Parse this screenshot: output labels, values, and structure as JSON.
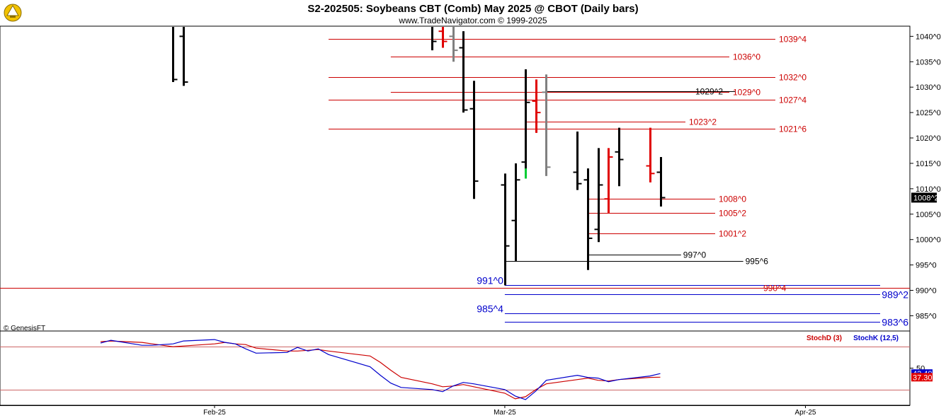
{
  "header": {
    "title": "S2-202505:  Soybeans CBT (Comb) May 2025 @ CBOT  (Daily bars)",
    "subtitle": "www.TradeNavigator.com © 1999-2025",
    "logo_icon": "trade-navigator-logo-icon"
  },
  "watermark": "© GenesisFT",
  "colors": {
    "up": "#000000",
    "down_red": "#e00000",
    "gray": "#808080",
    "green": "#00cc33",
    "level_red": "#cc0000",
    "level_blue": "#0000cc",
    "level_black": "#000000",
    "stoch_d": "#cc0000",
    "stoch_k": "#0000cc"
  },
  "chart_data": [
    {
      "type": "bar",
      "subtype": "ohlc",
      "title": "S2-202505:  Soybeans CBT (Comb) May 2025 @ CBOT  (Daily bars)",
      "ylim": [
        982,
        1042
      ],
      "y_ticks": [
        {
          "value": 1040,
          "label": "1040^0"
        },
        {
          "value": 1035,
          "label": "1035^0"
        },
        {
          "value": 1030,
          "label": "1030^0"
        },
        {
          "value": 1025,
          "label": "1025^0"
        },
        {
          "value": 1020,
          "label": "1020^0"
        },
        {
          "value": 1015,
          "label": "1015^0"
        },
        {
          "value": 1010,
          "label": "1010^0"
        },
        {
          "value": 1005,
          "label": "1005^0"
        },
        {
          "value": 1000,
          "label": "1000^0"
        },
        {
          "value": 995,
          "label": "995^0"
        },
        {
          "value": 990,
          "label": "990^0"
        },
        {
          "value": 985,
          "label": "985^0"
        }
      ],
      "x_labels": [
        {
          "date": "2025-02-03",
          "label": "Feb-25"
        },
        {
          "date": "2025-03-03",
          "label": "Mar-25"
        },
        {
          "date": "2025-04-01",
          "label": "Apr-25"
        }
      ],
      "last_price": {
        "value": 1008.25,
        "label": "1008^2"
      },
      "bars": [
        {
          "date": "2025-01-30",
          "open": 1052.0,
          "high": 1062.0,
          "low": 1031.0,
          "close": 1031.5,
          "color": "up"
        },
        {
          "date": "2025-01-31",
          "open": 1040.0,
          "high": 1058.0,
          "low": 1030.25,
          "close": 1031.0,
          "color": "up"
        },
        {
          "date": "2025-02-24",
          "open": 1044.0,
          "high": 1046.0,
          "low": 1037.25,
          "close": 1039.0,
          "color": "up"
        },
        {
          "date": "2025-02-25",
          "open": 1041.0,
          "high": 1045.0,
          "low": 1037.75,
          "close": 1039.0,
          "color": "down_red"
        },
        {
          "date": "2025-02-26",
          "open": 1040.0,
          "high": 1043.0,
          "low": 1035.0,
          "close": 1037.25,
          "color": "gray"
        },
        {
          "date": "2025-02-27",
          "open": 1037.75,
          "high": 1041.0,
          "low": 1025.0,
          "close": 1025.5,
          "color": "up"
        },
        {
          "date": "2025-02-28",
          "open": 1025.75,
          "high": 1031.25,
          "low": 1008.0,
          "close": 1011.5,
          "color": "up"
        },
        {
          "date": "2025-03-03",
          "open": 1010.75,
          "high": 1013.0,
          "low": 991.0,
          "close": 998.75,
          "color": "up"
        },
        {
          "date": "2025-03-04",
          "open": 1003.75,
          "high": 1015.0,
          "low": 995.75,
          "close": 1011.75,
          "color": "up"
        },
        {
          "date": "2025-03-05",
          "open": 1015.25,
          "high": 1033.5,
          "low": 1012.0,
          "close": 1027.0,
          "color": "up"
        },
        {
          "date": "2025-03-05",
          "open": 1014.0,
          "high": 1014.0,
          "low": 1012.0,
          "close": 1012.0,
          "color": "green"
        },
        {
          "date": "2025-03-06",
          "open": 1027.25,
          "high": 1031.5,
          "low": 1021.0,
          "close": 1025.0,
          "color": "down_red"
        },
        {
          "date": "2025-03-07",
          "open": 1029.0,
          "high": 1032.5,
          "low": 1012.5,
          "close": 1014.25,
          "color": "gray"
        },
        {
          "date": "2025-03-10",
          "open": 1013.25,
          "high": 1021.25,
          "low": 1009.75,
          "close": 1011.0,
          "color": "up"
        },
        {
          "date": "2025-03-11",
          "open": 1011.75,
          "high": 1014.0,
          "low": 994.0,
          "close": 1000.25,
          "color": "up"
        },
        {
          "date": "2025-03-12",
          "open": 1002.0,
          "high": 1018.0,
          "low": 999.5,
          "close": 1010.75,
          "color": "up"
        },
        {
          "date": "2025-03-13",
          "open": 1008.0,
          "high": 1018.0,
          "low": 1005.25,
          "close": 1016.25,
          "color": "down_red"
        },
        {
          "date": "2025-03-14",
          "open": 1017.25,
          "high": 1022.0,
          "low": 1010.5,
          "close": 1015.75,
          "color": "up"
        },
        {
          "date": "2025-03-17",
          "open": 1014.5,
          "high": 1022.0,
          "low": 1011.25,
          "close": 1013.0,
          "color": "down_red"
        },
        {
          "date": "2025-03-18",
          "open": 1013.25,
          "high": 1016.25,
          "low": 1006.5,
          "close": 1008.25,
          "color": "up"
        }
      ],
      "levels": [
        {
          "value": 1039.5,
          "label": "1039^4",
          "color": "level_red",
          "start": "2025-02-14"
        },
        {
          "value": 1036.0,
          "label": "1036^0",
          "color": "level_red",
          "start": "2025-02-20"
        },
        {
          "value": 1032.0,
          "label": "1032^0",
          "color": "level_red",
          "start": "2025-02-14"
        },
        {
          "value": 1029.0,
          "label": "1029^0",
          "color": "level_red",
          "start": "2025-02-20"
        },
        {
          "value": 1029.25,
          "label": "1029^2",
          "color": "level_black",
          "start": "2025-03-07"
        },
        {
          "value": 1027.5,
          "label": "1027^4",
          "color": "level_red",
          "start": "2025-02-14"
        },
        {
          "value": 1023.25,
          "label": "1023^2",
          "color": "level_red",
          "start": "2025-03-05"
        },
        {
          "value": 1021.75,
          "label": "1021^6",
          "color": "level_red",
          "start": "2025-02-14"
        },
        {
          "value": 1008.0,
          "label": "1008^0",
          "color": "level_red",
          "start": "2025-03-11"
        },
        {
          "value": 1005.25,
          "label": "1005^2",
          "color": "level_red",
          "start": "2025-03-11"
        },
        {
          "value": 1001.25,
          "label": "1001^2",
          "color": "level_red",
          "start": "2025-03-11"
        },
        {
          "value": 997.0,
          "label": "997^0",
          "color": "level_black",
          "start": "2025-03-11"
        },
        {
          "value": 995.75,
          "label": "995^6",
          "color": "level_black",
          "start": "2025-03-03"
        },
        {
          "value": 991.0,
          "label": "991^0",
          "color": "level_blue",
          "start": "2025-03-03"
        },
        {
          "value": 990.5,
          "label": "990^4",
          "color": "level_red",
          "start": "2025-03-03"
        },
        {
          "value": 989.25,
          "label": "989^2",
          "color": "level_blue",
          "start": "2025-03-03"
        },
        {
          "value": 985.5,
          "label": "985^4",
          "color": "level_blue",
          "start": "2025-03-03"
        },
        {
          "value": 983.75,
          "label": "983^6",
          "color": "level_blue",
          "start": "2025-03-03"
        }
      ]
    },
    {
      "type": "line",
      "title": "Stochastics",
      "ylim": [
        0,
        100
      ],
      "y_ticks": [
        {
          "value": 50,
          "label": "50"
        }
      ],
      "reference_lines": [
        80,
        20
      ],
      "last_values": {
        "k": "42.40",
        "d": "37.30"
      },
      "series": [
        {
          "name": "StochD (3)",
          "color": "stoch_d",
          "points": [
            {
              "date": "2025-01-23",
              "value": 87
            },
            {
              "date": "2025-01-24",
              "value": 88
            },
            {
              "date": "2025-01-27",
              "value": 86
            },
            {
              "date": "2025-01-28",
              "value": 84
            },
            {
              "date": "2025-01-29",
              "value": 82
            },
            {
              "date": "2025-01-30",
              "value": 80
            },
            {
              "date": "2025-01-31",
              "value": 81
            },
            {
              "date": "2025-02-03",
              "value": 84
            },
            {
              "date": "2025-02-04",
              "value": 86
            },
            {
              "date": "2025-02-05",
              "value": 84
            },
            {
              "date": "2025-02-06",
              "value": 83
            },
            {
              "date": "2025-02-07",
              "value": 78
            },
            {
              "date": "2025-02-10",
              "value": 74
            },
            {
              "date": "2025-02-11",
              "value": 74
            },
            {
              "date": "2025-02-12",
              "value": 75
            },
            {
              "date": "2025-02-13",
              "value": 76
            },
            {
              "date": "2025-02-14",
              "value": 74
            },
            {
              "date": "2025-02-18",
              "value": 67
            },
            {
              "date": "2025-02-19",
              "value": 58
            },
            {
              "date": "2025-02-20",
              "value": 47
            },
            {
              "date": "2025-02-21",
              "value": 37
            },
            {
              "date": "2025-02-24",
              "value": 28
            },
            {
              "date": "2025-02-25",
              "value": 24
            },
            {
              "date": "2025-02-26",
              "value": 25
            },
            {
              "date": "2025-02-27",
              "value": 27
            },
            {
              "date": "2025-02-28",
              "value": 24
            },
            {
              "date": "2025-03-03",
              "value": 15
            },
            {
              "date": "2025-03-04",
              "value": 7
            },
            {
              "date": "2025-03-05",
              "value": 10
            },
            {
              "date": "2025-03-06",
              "value": 20
            },
            {
              "date": "2025-03-07",
              "value": 28
            },
            {
              "date": "2025-03-10",
              "value": 34
            },
            {
              "date": "2025-03-11",
              "value": 36
            },
            {
              "date": "2025-03-12",
              "value": 33
            },
            {
              "date": "2025-03-13",
              "value": 32
            },
            {
              "date": "2025-03-14",
              "value": 34
            },
            {
              "date": "2025-03-17",
              "value": 37
            },
            {
              "date": "2025-03-18",
              "value": 37.3
            }
          ]
        },
        {
          "name": "StochK (12,5)",
          "color": "stoch_k",
          "points": [
            {
              "date": "2025-01-23",
              "value": 85
            },
            {
              "date": "2025-01-24",
              "value": 89
            },
            {
              "date": "2025-01-27",
              "value": 82
            },
            {
              "date": "2025-01-28",
              "value": 82
            },
            {
              "date": "2025-01-29",
              "value": 83
            },
            {
              "date": "2025-01-30",
              "value": 84
            },
            {
              "date": "2025-01-31",
              "value": 88
            },
            {
              "date": "2025-02-03",
              "value": 90
            },
            {
              "date": "2025-02-04",
              "value": 86
            },
            {
              "date": "2025-02-05",
              "value": 84
            },
            {
              "date": "2025-02-06",
              "value": 77
            },
            {
              "date": "2025-02-07",
              "value": 71
            },
            {
              "date": "2025-02-10",
              "value": 72
            },
            {
              "date": "2025-02-11",
              "value": 79
            },
            {
              "date": "2025-02-12",
              "value": 74
            },
            {
              "date": "2025-02-13",
              "value": 77
            },
            {
              "date": "2025-02-14",
              "value": 69
            },
            {
              "date": "2025-02-18",
              "value": 52
            },
            {
              "date": "2025-02-19",
              "value": 40
            },
            {
              "date": "2025-02-20",
              "value": 29
            },
            {
              "date": "2025-02-21",
              "value": 23
            },
            {
              "date": "2025-02-24",
              "value": 20
            },
            {
              "date": "2025-02-25",
              "value": 17
            },
            {
              "date": "2025-02-26",
              "value": 25
            },
            {
              "date": "2025-02-27",
              "value": 30
            },
            {
              "date": "2025-02-28",
              "value": 28
            },
            {
              "date": "2025-03-03",
              "value": 20
            },
            {
              "date": "2025-03-04",
              "value": 11
            },
            {
              "date": "2025-03-05",
              "value": 6
            },
            {
              "date": "2025-03-06",
              "value": 18
            },
            {
              "date": "2025-03-07",
              "value": 33
            },
            {
              "date": "2025-03-10",
              "value": 40
            },
            {
              "date": "2025-03-11",
              "value": 37
            },
            {
              "date": "2025-03-12",
              "value": 36
            },
            {
              "date": "2025-03-13",
              "value": 31
            },
            {
              "date": "2025-03-14",
              "value": 34
            },
            {
              "date": "2025-03-17",
              "value": 39
            },
            {
              "date": "2025-03-18",
              "value": 42.4
            }
          ]
        }
      ]
    }
  ]
}
